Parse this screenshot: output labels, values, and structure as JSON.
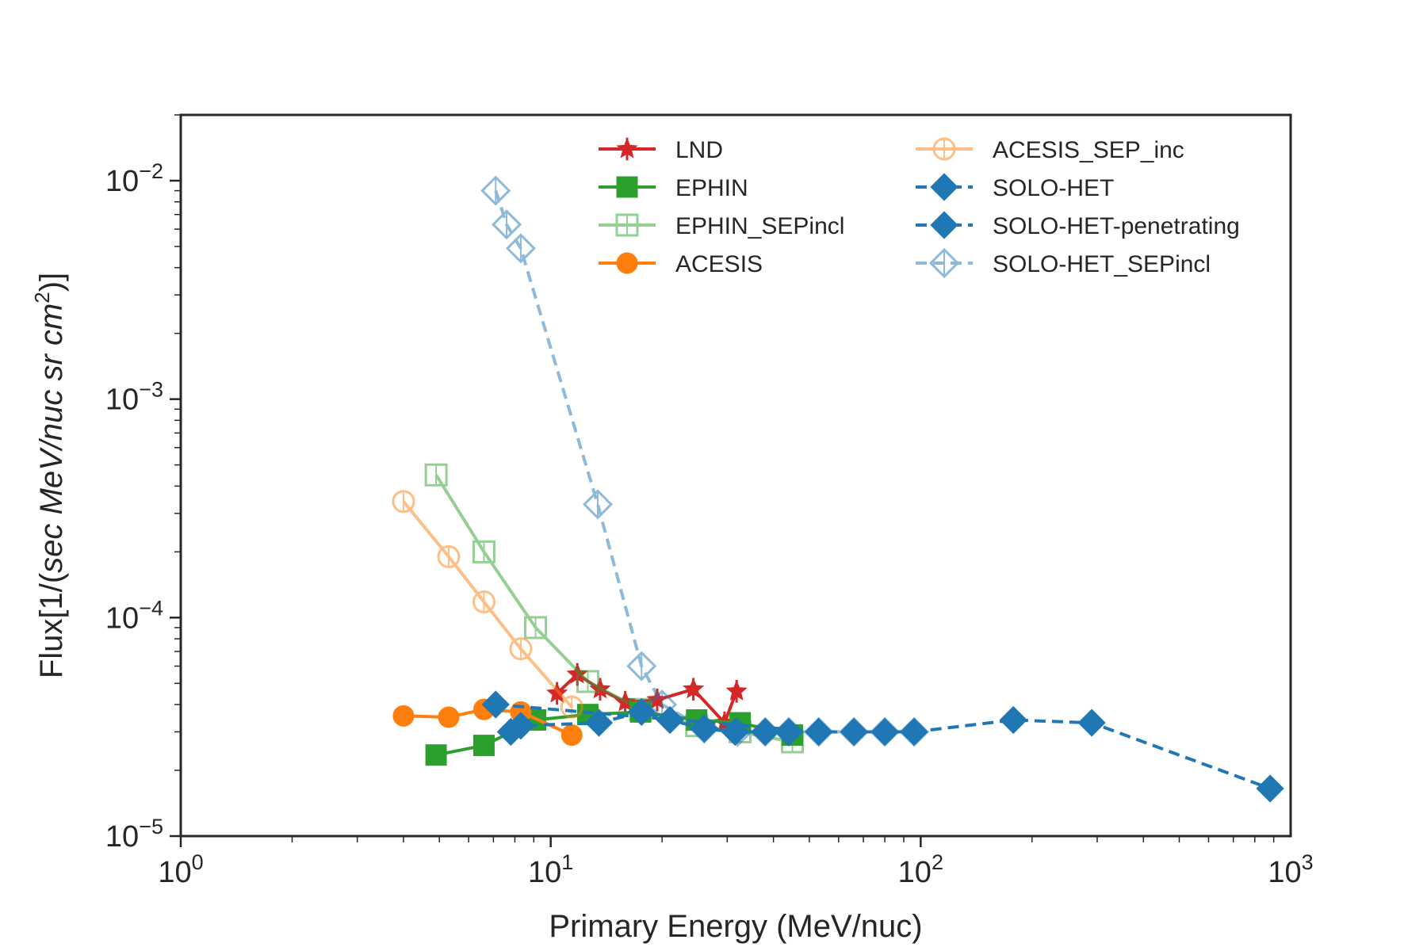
{
  "chart_data": {
    "type": "scatter",
    "title": "",
    "xlabel": "Primary Energy (MeV/nuc)",
    "ylabel": "Flux[1/(sec MeV/nuc sr cm²)]",
    "ylabel_parts": {
      "prefix": "Flux[1/(",
      "math": "sec MeV/nuc sr cm",
      "sup": "2",
      "suffix": ")]"
    },
    "xscale": "log",
    "yscale": "log",
    "xlim": [
      1,
      1000
    ],
    "ylim": [
      1e-05,
      0.02
    ],
    "grid": false,
    "legend_position": "top-right",
    "x_ticks": [
      {
        "value": 1,
        "base": "10",
        "exp": "0"
      },
      {
        "value": 10,
        "base": "10",
        "exp": "1"
      },
      {
        "value": 100,
        "base": "10",
        "exp": "2"
      },
      {
        "value": 1000,
        "base": "10",
        "exp": "3"
      }
    ],
    "y_ticks": [
      {
        "value": 1e-05,
        "base": "10",
        "exp": "−5"
      },
      {
        "value": 0.0001,
        "base": "10",
        "exp": "−4"
      },
      {
        "value": 0.001,
        "base": "10",
        "exp": "−3"
      },
      {
        "value": 0.01,
        "base": "10",
        "exp": "−2"
      }
    ],
    "series": [
      {
        "name": "LND",
        "color": "#d62728",
        "marker": "star",
        "filled": true,
        "linestyle": "solid",
        "alpha": 1,
        "x": [
          10.4,
          11.8,
          13.6,
          15.9,
          19.4,
          24.3,
          29.5,
          31.8
        ],
        "y": [
          4.5e-05,
          5.5e-05,
          4.7e-05,
          4.1e-05,
          4.2e-05,
          4.7e-05,
          3.3e-05,
          4.6e-05
        ]
      },
      {
        "name": "EPHIN",
        "color": "#2ca02c",
        "marker": "square",
        "filled": true,
        "linestyle": "solid",
        "alpha": 1,
        "x": [
          4.9,
          6.6,
          9.1,
          12.6,
          17.5,
          24.8,
          32.5,
          45.0
        ],
        "y": [
          2.35e-05,
          2.6e-05,
          3.4e-05,
          3.6e-05,
          3.7e-05,
          3.4e-05,
          3.3e-05,
          2.9e-05
        ]
      },
      {
        "name": "EPHIN_SEPincl",
        "color": "#2ca02c",
        "marker": "square",
        "filled": false,
        "linestyle": "solid",
        "alpha": 0.5,
        "x": [
          4.9,
          6.6,
          9.1,
          12.6,
          17.5,
          24.8,
          32.5,
          45.0
        ],
        "y": [
          0.00045,
          0.0002,
          9e-05,
          5.1e-05,
          3.8e-05,
          3.2e-05,
          3e-05,
          2.7e-05
        ]
      },
      {
        "name": "ACESIS",
        "color": "#ff7f0e",
        "marker": "circle",
        "filled": true,
        "linestyle": "solid",
        "alpha": 1,
        "x": [
          4.0,
          5.3,
          6.6,
          8.3,
          11.4
        ],
        "y": [
          3.55e-05,
          3.5e-05,
          3.8e-05,
          3.7e-05,
          2.9e-05
        ]
      },
      {
        "name": "ACESIS_SEP_inc",
        "color": "#ff7f0e",
        "marker": "circle",
        "filled": false,
        "linestyle": "solid",
        "alpha": 0.5,
        "x": [
          4.0,
          5.3,
          6.6,
          8.3,
          11.4
        ],
        "y": [
          0.00034,
          0.00019,
          0.000118,
          7.2e-05,
          3.9e-05
        ]
      },
      {
        "name": "SOLO-HET",
        "color": "#1f77b4",
        "marker": "diamond",
        "filled": true,
        "linestyle": "dashed",
        "alpha": 1,
        "x": [
          7.8,
          8.3,
          13.5,
          17.6,
          21.0,
          26.0,
          31.5,
          38.0,
          44.0
        ],
        "y": [
          3e-05,
          3.2e-05,
          3.3e-05,
          3.7e-05,
          3.4e-05,
          3.1e-05,
          3e-05,
          3e-05,
          3e-05
        ]
      },
      {
        "name": "SOLO-HET-penetrating",
        "color": "#1f77b4",
        "marker": "diamond",
        "filled": true,
        "linestyle": "dashed",
        "alpha": 1,
        "x": [
          7.1,
          53.0,
          66.0,
          80.0,
          96.0,
          178.0,
          290.0,
          880.0
        ],
        "y": [
          4e-05,
          3e-05,
          3e-05,
          3e-05,
          3e-05,
          3.4e-05,
          3.3e-05,
          1.65e-05
        ]
      },
      {
        "name": "SOLO-HET_SEPincl",
        "color": "#1f77b4",
        "marker": "diamond",
        "filled": false,
        "linestyle": "dashed",
        "alpha": 0.5,
        "x": [
          7.1,
          7.6,
          8.3,
          13.4,
          17.6,
          20.0,
          26.0,
          32.0,
          38.0,
          44.0,
          53.0,
          66.0,
          80.0,
          96.0
        ],
        "y": [
          0.009,
          0.0063,
          0.0049,
          0.00033,
          6e-05,
          4e-05,
          3.1e-05,
          3e-05,
          3e-05,
          3e-05,
          3e-05,
          3e-05,
          3e-05,
          3e-05
        ]
      }
    ]
  }
}
